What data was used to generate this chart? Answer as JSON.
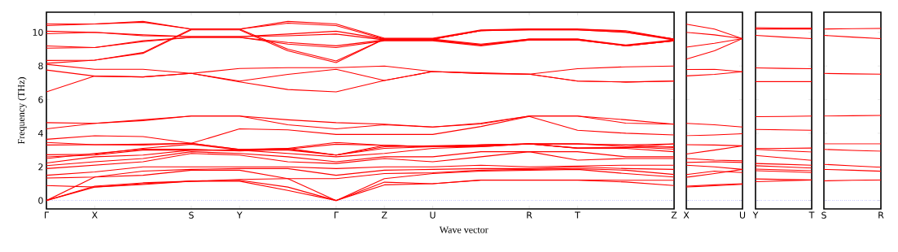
{
  "chart_data": [
    {
      "type": "line",
      "xlabel": "Wave vector",
      "ylabel": "Frequency (THz)",
      "categories": [
        "Γ",
        "X",
        null,
        "S",
        "Y",
        null,
        "Γ",
        "Z",
        "U",
        null,
        "R",
        "T",
        null,
        "Z"
      ],
      "ylim": [
        -0.5,
        11.2
      ],
      "yticks": [
        0,
        2,
        4,
        6,
        8,
        10
      ],
      "grid": false,
      "marker": "none",
      "line_style": "solid",
      "ref_lines": [
        {
          "axis": "y",
          "value": 0,
          "color": "#0000ff",
          "line_style": "dotted"
        }
      ],
      "series": [
        {
          "color": "#ff0000",
          "values": [
            10.5,
            10.5,
            10.65,
            10.2,
            10.2,
            10.65,
            10.5,
            9.65,
            9.65,
            10.15,
            10.2,
            10.2,
            10.1,
            9.6
          ]
        },
        {
          "color": "#ff0000",
          "values": [
            10.4,
            10.5,
            10.6,
            10.2,
            10.2,
            10.55,
            10.4,
            9.6,
            9.6,
            10.1,
            10.2,
            10.2,
            10.05,
            9.6
          ]
        },
        {
          "color": "#ff0000",
          "values": [
            10.07,
            10.0,
            9.85,
            9.75,
            9.75,
            9.9,
            10.07,
            9.6,
            9.6,
            9.3,
            9.6,
            9.6,
            9.25,
            9.55
          ]
        },
        {
          "color": "#ff0000",
          "values": [
            9.92,
            10.0,
            9.8,
            9.75,
            9.75,
            9.8,
            9.9,
            9.55,
            9.55,
            9.25,
            9.6,
            9.6,
            9.2,
            9.5
          ]
        },
        {
          "color": "#ff0000",
          "values": [
            9.19,
            9.1,
            9.5,
            9.7,
            9.7,
            9.4,
            9.2,
            9.55,
            9.55,
            9.25,
            9.55,
            9.55,
            9.2,
            9.5
          ]
        },
        {
          "color": "#ff0000",
          "values": [
            9.06,
            9.1,
            9.45,
            9.7,
            9.7,
            9.3,
            9.1,
            9.5,
            9.5,
            9.2,
            9.55,
            9.55,
            9.2,
            9.5
          ]
        },
        {
          "color": "#ff0000",
          "values": [
            8.33,
            8.35,
            8.8,
            10.2,
            10.2,
            9.0,
            8.3,
            9.6,
            9.6,
            10.1,
            10.15,
            10.15,
            10.0,
            9.6
          ]
        },
        {
          "color": "#ff0000",
          "values": [
            8.16,
            8.35,
            8.75,
            10.15,
            10.15,
            8.9,
            8.2,
            9.6,
            9.6,
            10.1,
            10.15,
            10.15,
            10.0,
            9.55
          ]
        },
        {
          "color": "#ff0000",
          "values": [
            8.1,
            7.8,
            7.8,
            7.56,
            7.85,
            7.9,
            7.9,
            8.0,
            7.67,
            7.6,
            7.51,
            7.84,
            7.95,
            8.0
          ]
        },
        {
          "color": "#ff0000",
          "values": [
            7.76,
            7.4,
            7.35,
            7.56,
            7.1,
            7.5,
            7.8,
            7.14,
            7.67,
            7.55,
            7.51,
            7.1,
            7.05,
            7.1
          ]
        },
        {
          "color": "#ff0000",
          "values": [
            6.46,
            7.4,
            7.35,
            7.56,
            7.05,
            6.6,
            6.46,
            7.14,
            7.67,
            7.55,
            7.51,
            7.1,
            7.05,
            7.1
          ]
        },
        {
          "color": "#ff0000",
          "values": [
            4.63,
            4.59,
            4.8,
            5.02,
            5.02,
            4.8,
            4.63,
            4.54,
            4.37,
            4.6,
            5.02,
            5.02,
            4.8,
            4.54
          ]
        },
        {
          "color": "#ff0000",
          "values": [
            4.26,
            4.59,
            4.75,
            5.02,
            5.02,
            4.5,
            4.26,
            4.5,
            4.37,
            4.55,
            5.02,
            5.02,
            4.6,
            4.54
          ]
        },
        {
          "color": "#ff0000",
          "values": [
            3.64,
            3.85,
            3.8,
            3.4,
            4.26,
            4.2,
            3.93,
            3.93,
            3.93,
            4.4,
            5.0,
            4.18,
            4.0,
            3.9
          ]
        },
        {
          "color": "#ff0000",
          "values": [
            3.45,
            3.32,
            3.35,
            3.4,
            3.04,
            3.1,
            3.45,
            3.28,
            3.2,
            3.3,
            3.37,
            3.12,
            3.15,
            3.37
          ]
        },
        {
          "color": "#ff0000",
          "values": [
            3.3,
            3.32,
            3.3,
            3.4,
            3.04,
            3.05,
            3.35,
            3.28,
            3.2,
            3.3,
            3.37,
            3.37,
            3.3,
            3.15
          ]
        },
        {
          "color": "#ff0000",
          "values": [
            0,
            0.8,
            1.0,
            1.15,
            1.15,
            0.6,
            0,
            0.93,
            1.0,
            1.2,
            1.2,
            1.2,
            1.1,
            0.89
          ]
        },
        {
          "color": "#ff0000",
          "values": [
            0,
            0.85,
            1.05,
            1.15,
            1.2,
            0.8,
            0,
            1.09,
            1.0,
            1.22,
            1.22,
            1.22,
            1.2,
            1.2
          ]
        },
        {
          "color": "#ff0000",
          "values": [
            0,
            1.4,
            1.5,
            1.8,
            1.8,
            1.3,
            0,
            1.3,
            1.6,
            1.75,
            1.8,
            1.85,
            1.6,
            1.4
          ]
        },
        {
          "color": "#ff0000",
          "values": [
            0.89,
            0.8,
            0.95,
            1.15,
            1.25,
            1.3,
            1.3,
            1.6,
            1.65,
            1.8,
            1.85,
            1.9,
            1.8,
            1.55
          ]
        },
        {
          "color": "#ff0000",
          "values": [
            1.33,
            1.4,
            1.75,
            1.85,
            1.9,
            1.9,
            1.5,
            1.8,
            1.85,
            1.9,
            1.9,
            2.0,
            1.9,
            1.85
          ]
        },
        {
          "color": "#ff0000",
          "values": [
            1.5,
            1.7,
            2.0,
            2.0,
            2.0,
            2.0,
            1.9,
            2.0,
            2.0,
            2.1,
            2.0,
            2.05,
            2.1,
            2.1
          ]
        },
        {
          "color": "#ff0000",
          "values": [
            2.23,
            2.6,
            2.7,
            3.0,
            3.0,
            2.8,
            2.6,
            2.8,
            3.1,
            3.2,
            3.37,
            3.1,
            3.1,
            2.9
          ]
        },
        {
          "color": "#ff0000",
          "values": [
            1.9,
            2.1,
            2.3,
            2.8,
            2.7,
            2.3,
            2.2,
            2.5,
            2.3,
            2.6,
            2.9,
            2.4,
            2.5,
            2.5
          ]
        },
        {
          "color": "#ff0000",
          "values": [
            2.07,
            2.3,
            2.5,
            2.9,
            2.8,
            2.6,
            2.3,
            2.6,
            2.6,
            2.9,
            2.9,
            2.9,
            2.6,
            2.6
          ]
        },
        {
          "color": "#ff0000",
          "values": [
            2.59,
            2.7,
            3.0,
            3.0,
            3.0,
            3.0,
            2.7,
            3.1,
            3.2,
            3.2,
            3.37,
            3.12,
            3.15,
            3.2
          ]
        },
        {
          "color": "#ff0000",
          "values": [
            2.72,
            2.75,
            3.1,
            3.35,
            3.0,
            3.1,
            2.7,
            3.28,
            3.2,
            3.25,
            3.37,
            3.37,
            3.3,
            3.37
          ]
        },
        {
          "color": "#ff0000",
          "values": [
            2.5,
            2.8,
            3.05,
            3.05,
            2.95,
            3.05,
            2.7,
            3.2,
            3.25,
            3.3,
            3.37,
            3.37,
            3.2,
            3.05
          ]
        }
      ]
    },
    {
      "type": "line",
      "categories": [
        "X",
        null,
        "U"
      ],
      "ylim": [
        -0.5,
        11.2
      ],
      "yticks": [
        0,
        2,
        4,
        6,
        8,
        10
      ],
      "tick_labels": "x",
      "grid": false,
      "marker": "none",
      "line_style": "solid",
      "ref_lines": [
        {
          "axis": "y",
          "value": 0,
          "color": "#0000ff",
          "line_style": "dotted"
        }
      ],
      "series": [
        {
          "color": "#ff0000",
          "values": [
            10.49,
            10.2,
            9.63
          ]
        },
        {
          "color": "#ff0000",
          "values": [
            10.0,
            9.85,
            9.63
          ]
        },
        {
          "color": "#ff0000",
          "values": [
            9.12,
            9.35,
            9.63
          ]
        },
        {
          "color": "#ff0000",
          "values": [
            8.41,
            8.9,
            9.63
          ]
        },
        {
          "color": "#ff0000",
          "values": [
            7.79,
            7.8,
            7.66
          ]
        },
        {
          "color": "#ff0000",
          "values": [
            7.41,
            7.5,
            7.66
          ]
        },
        {
          "color": "#ff0000",
          "values": [
            4.59,
            4.5,
            4.37
          ]
        },
        {
          "color": "#ff0000",
          "values": [
            3.85,
            3.9,
            3.97
          ]
        },
        {
          "color": "#ff0000",
          "values": [
            3.32,
            3.3,
            3.25
          ]
        },
        {
          "color": "#ff0000",
          "values": [
            2.76,
            3.0,
            3.25
          ]
        },
        {
          "color": "#ff0000",
          "values": [
            2.5,
            2.4,
            2.36
          ]
        },
        {
          "color": "#ff0000",
          "values": [
            2.26,
            2.3,
            2.26
          ]
        },
        {
          "color": "#ff0000",
          "values": [
            2.1,
            2.0,
            1.85
          ]
        },
        {
          "color": "#ff0000",
          "values": [
            1.54,
            1.75,
            1.66
          ]
        },
        {
          "color": "#ff0000",
          "values": [
            1.38,
            1.6,
            1.85
          ]
        },
        {
          "color": "#ff0000",
          "values": [
            0.85,
            0.93,
            1.0
          ]
        },
        {
          "color": "#ff0000",
          "values": [
            0.8,
            0.88,
            0.96
          ]
        }
      ]
    },
    {
      "type": "line",
      "categories": [
        "Y",
        null,
        "T"
      ],
      "ylim": [
        -0.5,
        11.2
      ],
      "yticks": [
        0,
        2,
        4,
        6,
        8,
        10
      ],
      "tick_labels": "x",
      "grid": false,
      "marker": "none",
      "line_style": "solid",
      "ref_lines": [
        {
          "axis": "y",
          "value": 0,
          "color": "#0000ff",
          "line_style": "dotted"
        }
      ],
      "series": [
        {
          "color": "#ff0000",
          "values": [
            10.28,
            10.26,
            10.25
          ]
        },
        {
          "color": "#ff0000",
          "values": [
            10.2,
            10.2,
            10.2
          ]
        },
        {
          "color": "#ff0000",
          "values": [
            9.82,
            9.72,
            9.63
          ]
        },
        {
          "color": "#ff0000",
          "values": [
            7.89,
            7.86,
            7.84
          ]
        },
        {
          "color": "#ff0000",
          "values": [
            7.07,
            7.07,
            7.07
          ]
        },
        {
          "color": "#ff0000",
          "values": [
            4.99,
            5.0,
            5.02
          ]
        },
        {
          "color": "#ff0000",
          "values": [
            4.23,
            4.2,
            4.18
          ]
        },
        {
          "color": "#ff0000",
          "values": [
            3.09,
            3.1,
            3.12
          ]
        },
        {
          "color": "#ff0000",
          "values": [
            3.04,
            2.96,
            2.88
          ]
        },
        {
          "color": "#ff0000",
          "values": [
            2.68,
            2.53,
            2.39
          ]
        },
        {
          "color": "#ff0000",
          "values": [
            2.2,
            2.15,
            2.1
          ]
        },
        {
          "color": "#ff0000",
          "values": [
            2.07,
            2.0,
            1.93
          ]
        },
        {
          "color": "#ff0000",
          "values": [
            1.87,
            1.82,
            1.77
          ]
        },
        {
          "color": "#ff0000",
          "values": [
            1.77,
            1.72,
            1.66
          ]
        },
        {
          "color": "#ff0000",
          "values": [
            1.28,
            1.25,
            1.22
          ]
        },
        {
          "color": "#ff0000",
          "values": [
            1.12,
            1.17,
            1.22
          ]
        }
      ]
    },
    {
      "type": "line",
      "categories": [
        "S",
        null,
        "R"
      ],
      "ylim": [
        -0.5,
        11.2
      ],
      "yticks": [
        0,
        2,
        4,
        6,
        8,
        10
      ],
      "tick_labels": "x",
      "grid": false,
      "marker": "none",
      "line_style": "solid",
      "ref_lines": [
        {
          "axis": "y",
          "value": 0,
          "color": "#0000ff",
          "line_style": "dotted"
        }
      ],
      "series": [
        {
          "color": "#ff0000",
          "values": [
            10.2,
            10.22,
            10.24
          ]
        },
        {
          "color": "#ff0000",
          "values": [
            9.82,
            9.72,
            9.63
          ]
        },
        {
          "color": "#ff0000",
          "values": [
            7.56,
            7.53,
            7.51
          ]
        },
        {
          "color": "#ff0000",
          "values": [
            5.02,
            5.04,
            5.06
          ]
        },
        {
          "color": "#ff0000",
          "values": [
            3.37,
            3.37,
            3.37
          ]
        },
        {
          "color": "#ff0000",
          "values": [
            3.04,
            2.98,
            2.93
          ]
        },
        {
          "color": "#ff0000",
          "values": [
            2.15,
            2.06,
            1.98
          ]
        },
        {
          "color": "#ff0000",
          "values": [
            1.85,
            1.8,
            1.74
          ]
        },
        {
          "color": "#ff0000",
          "values": [
            1.17,
            1.2,
            1.22
          ]
        }
      ]
    }
  ]
}
